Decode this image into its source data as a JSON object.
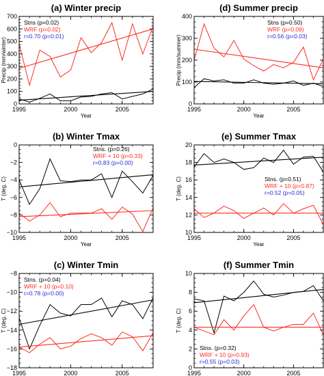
{
  "colors": {
    "stations": "#000000",
    "wrf": "#ff2a1f",
    "corr": "#2b2bd6"
  },
  "chart_data": [
    {
      "id": "a",
      "type": "line",
      "title": "(a) Winter precip",
      "xlabel": "Year",
      "ylabel": "Precip (mm/winter)",
      "xlim": [
        1995,
        2008
      ],
      "ylim": [
        0,
        700
      ],
      "xticks": [
        1995,
        2000,
        2005
      ],
      "yticks": [
        0,
        100,
        200,
        300,
        400,
        500,
        600,
        700
      ],
      "ytick_labels": [
        "0",
        "100",
        "200",
        "300",
        "400",
        "500",
        "600",
        "700"
      ],
      "legend": [
        {
          "text": "Stns (p=0.02)",
          "color": "#000000"
        },
        {
          "text": "WRF (p=0.02)",
          "color": "#ff2a1f"
        },
        {
          "text": "r=0.70 (p=0.01)",
          "color": "#2b2bd6"
        }
      ],
      "legend_loc": "top-left",
      "series": [
        {
          "x": [
            1995,
            1996,
            1997,
            1998,
            1999,
            2000,
            2001,
            2002,
            2003,
            2004,
            2005,
            2006,
            2007,
            2008
          ],
          "values": [
            480,
            150,
            430,
            380,
            215,
            270,
            530,
            410,
            490,
            650,
            350,
            640,
            400,
            620
          ],
          "color": "#ff2a1f",
          "trend": [
            285,
            600
          ]
        },
        {
          "x": [
            1995,
            1996,
            1997,
            1998,
            1999,
            2000,
            2001,
            2002,
            2003,
            2004,
            2005,
            2006,
            2007,
            2008
          ],
          "values": [
            40,
            15,
            45,
            80,
            25,
            25,
            55,
            60,
            80,
            90,
            40,
            60,
            80,
            120
          ],
          "color": "#000000",
          "trend": [
            30,
            100
          ]
        }
      ]
    },
    {
      "id": "d",
      "type": "line",
      "title": "(d) Summer precip",
      "xlabel": "Year",
      "ylabel": "Precip (mm/summer)",
      "xlim": [
        1995,
        2008
      ],
      "ylim": [
        0,
        400
      ],
      "xticks": [
        1995,
        2000,
        2005
      ],
      "yticks": [
        0,
        100,
        200,
        300,
        400
      ],
      "ytick_labels": [
        "0",
        "100",
        "200",
        "300",
        "400"
      ],
      "legend": [
        {
          "text": "Stns (p=0.50)",
          "color": "#000000"
        },
        {
          "text": "WRF (p=0.09)",
          "color": "#ff2a1f"
        },
        {
          "text": "r=0.56 (p=0.03)",
          "color": "#2b2bd6"
        }
      ],
      "legend_loc": "top-right",
      "series": [
        {
          "x": [
            1995,
            1996,
            1997,
            1998,
            1999,
            2000,
            2001,
            2002,
            2003,
            2004,
            2005,
            2006,
            2007,
            2008
          ],
          "values": [
            200,
            365,
            255,
            215,
            290,
            205,
            175,
            150,
            180,
            165,
            190,
            260,
            110,
            205
          ],
          "color": "#ff2a1f",
          "trend": [
            250,
            165
          ]
        },
        {
          "x": [
            1995,
            1996,
            1997,
            1998,
            1999,
            2000,
            2001,
            2002,
            2003,
            2004,
            2005,
            2006,
            2007,
            2008
          ],
          "values": [
            75,
            115,
            105,
            110,
            95,
            95,
            110,
            95,
            90,
            95,
            105,
            85,
            95,
            80
          ],
          "color": "#000000",
          "trend": [
            103,
            92
          ]
        }
      ]
    },
    {
      "id": "b",
      "type": "line",
      "title": "(b) Winter Tmax",
      "xlabel": "Year",
      "ylabel": "T (deg. C)",
      "xlim": [
        1995,
        2008
      ],
      "ylim": [
        -10,
        0
      ],
      "xticks": [
        1995,
        2000,
        2005
      ],
      "yticks": [
        -10,
        -8,
        -6,
        -4,
        -2,
        0
      ],
      "ytick_labels": [
        "−10",
        "−8",
        "−6",
        "−4",
        "−2",
        "0"
      ],
      "legend": [
        {
          "text": "Stns. (p=0.26)",
          "color": "#000000"
        },
        {
          "text": "WRF + 10 (p=0.33)",
          "color": "#ff2a1f"
        },
        {
          "text": "r=0.83 (p=0.00)",
          "color": "#2b2bd6"
        }
      ],
      "legend_loc": "top-right",
      "series": [
        {
          "x": [
            1995,
            1996,
            1997,
            1998,
            1999,
            2000,
            2001,
            2002,
            2003,
            2004,
            2005,
            2006,
            2007,
            2008
          ],
          "values": [
            -4.0,
            -6.8,
            -5.0,
            -1.6,
            -4.1,
            -4.2,
            -4.0,
            -4.0,
            -3.3,
            -6.0,
            -3.0,
            -4.2,
            -5.5,
            -3.5
          ],
          "color": "#000000",
          "trend": [
            -4.8,
            -3.4
          ]
        },
        {
          "x": [
            1995,
            1996,
            1997,
            1998,
            1999,
            2000,
            2001,
            2002,
            2003,
            2004,
            2005,
            2006,
            2007,
            2008
          ],
          "values": [
            -7.8,
            -8.7,
            -8.0,
            -6.6,
            -8.2,
            -7.8,
            -7.8,
            -7.8,
            -7.3,
            -8.5,
            -7.1,
            -7.9,
            -9.9,
            -7.2
          ],
          "color": "#ff2a1f",
          "trend": [
            -8.2,
            -7.5
          ]
        }
      ]
    },
    {
      "id": "e",
      "type": "line",
      "title": "(e) Summer Tmax",
      "xlabel": "Year",
      "ylabel": "T (deg. C)",
      "xlim": [
        1995,
        2008
      ],
      "ylim": [
        10,
        20
      ],
      "xticks": [
        1995,
        2000,
        2005
      ],
      "yticks": [
        10,
        12,
        14,
        16,
        18,
        20
      ],
      "ytick_labels": [
        "10",
        "12",
        "14",
        "16",
        "18",
        "20"
      ],
      "legend": [
        {
          "text": "Stns. (p=0.51)",
          "color": "#000000"
        },
        {
          "text": "WRF + 10 (p=0.87)",
          "color": "#ff2a1f"
        },
        {
          "text": "r=0.52 (p=0.05)",
          "color": "#2b2bd6"
        }
      ],
      "legend_loc": "middle-right",
      "series": [
        {
          "x": [
            1995,
            1996,
            1997,
            1998,
            1999,
            2000,
            2001,
            2002,
            2003,
            2004,
            2005,
            2006,
            2007,
            2008
          ],
          "values": [
            17.5,
            19.0,
            18.0,
            18.4,
            18.0,
            17.2,
            17.4,
            18.5,
            18.0,
            19.4,
            17.8,
            18.6,
            18.7,
            16.9
          ],
          "color": "#000000",
          "trend": [
            17.7,
            18.6
          ]
        },
        {
          "x": [
            1995,
            1996,
            1997,
            1998,
            1999,
            2000,
            2001,
            2002,
            2003,
            2004,
            2005,
            2006,
            2007,
            2008
          ],
          "values": [
            12.7,
            11.7,
            12.2,
            13.0,
            12.5,
            11.6,
            12.2,
            12.8,
            12.0,
            13.3,
            12.2,
            12.7,
            13.1,
            10.9
          ],
          "color": "#ff2a1f",
          "trend": [
            12.2,
            12.2
          ]
        }
      ]
    },
    {
      "id": "c",
      "type": "line",
      "title": "(c) Winter Tmin",
      "xlabel": "Year",
      "ylabel": "T (deg. C)",
      "xlim": [
        1995,
        2008
      ],
      "ylim": [
        -18,
        -8
      ],
      "xticks": [
        1995,
        2000,
        2005
      ],
      "yticks": [
        -18,
        -16,
        -14,
        -12,
        -10,
        -8
      ],
      "ytick_labels": [
        "−18",
        "−16",
        "−14",
        "−12",
        "−10",
        "−8"
      ],
      "legend": [
        {
          "text": "Stns. (p=0.04)",
          "color": "#000000"
        },
        {
          "text": "WRF + 10 (p=0.10)",
          "color": "#ff2a1f"
        },
        {
          "text": "r=0.78 (p=0.00)",
          "color": "#2b2bd6"
        }
      ],
      "legend_loc": "top-left",
      "series": [
        {
          "x": [
            1995,
            1996,
            1997,
            1998,
            1999,
            2000,
            2001,
            2002,
            2003,
            2004,
            2005,
            2006,
            2007,
            2008
          ],
          "values": [
            -12.7,
            -16.0,
            -13.5,
            -11.3,
            -12.2,
            -12.5,
            -11.3,
            -11.3,
            -10.6,
            -12.6,
            -10.9,
            -11.3,
            -12.8,
            -10.6
          ],
          "color": "#000000",
          "trend": [
            -13.4,
            -10.8
          ]
        },
        {
          "x": [
            1995,
            1996,
            1997,
            1998,
            1999,
            2000,
            2001,
            2002,
            2003,
            2004,
            2005,
            2006,
            2007,
            2008
          ],
          "values": [
            -15.8,
            -16.4,
            -15.5,
            -14.8,
            -16.0,
            -15.7,
            -14.9,
            -14.4,
            -14.8,
            -15.6,
            -14.2,
            -14.7,
            -16.2,
            -14.3
          ],
          "color": "#ff2a1f",
          "trend": [
            -15.8,
            -14.6
          ]
        }
      ]
    },
    {
      "id": "f",
      "type": "line",
      "title": "(f) Summer Tmin",
      "xlabel": "Year",
      "ylabel": "T (deg. C)",
      "xlim": [
        1995,
        2008
      ],
      "ylim": [
        0,
        10
      ],
      "xticks": [
        1995,
        2000,
        2005
      ],
      "yticks": [
        0,
        2,
        4,
        6,
        8,
        10
      ],
      "ytick_labels": [
        "0",
        "2",
        "4",
        "6",
        "8",
        "10"
      ],
      "legend": [
        {
          "text": "Stns. (p=0.32)",
          "color": "#000000"
        },
        {
          "text": "WRF + 10 (p=0.93)",
          "color": "#ff2a1f"
        },
        {
          "text": "r=0.55 (p=0.03)",
          "color": "#2b2bd6"
        }
      ],
      "legend_loc": "bottom-left",
      "series": [
        {
          "x": [
            1995,
            1996,
            1997,
            1998,
            1999,
            2000,
            2001,
            2002,
            2003,
            2004,
            2005,
            2006,
            2007,
            2008
          ],
          "values": [
            7.3,
            7.1,
            3.7,
            7.6,
            7.1,
            8.0,
            9.2,
            7.8,
            7.5,
            7.7,
            8.0,
            8.1,
            8.7,
            7.1
          ],
          "color": "#000000",
          "trend": [
            6.9,
            8.3
          ]
        },
        {
          "x": [
            1995,
            1996,
            1997,
            1998,
            1999,
            2000,
            2001,
            2002,
            2003,
            2004,
            2005,
            2006,
            2007,
            2008
          ],
          "values": [
            4.3,
            3.9,
            3.5,
            5.1,
            4.0,
            5.5,
            6.7,
            4.3,
            3.9,
            4.3,
            4.6,
            4.6,
            5.8,
            3.5
          ],
          "color": "#ff2a1f",
          "trend": [
            4.3,
            4.3
          ]
        }
      ]
    }
  ]
}
